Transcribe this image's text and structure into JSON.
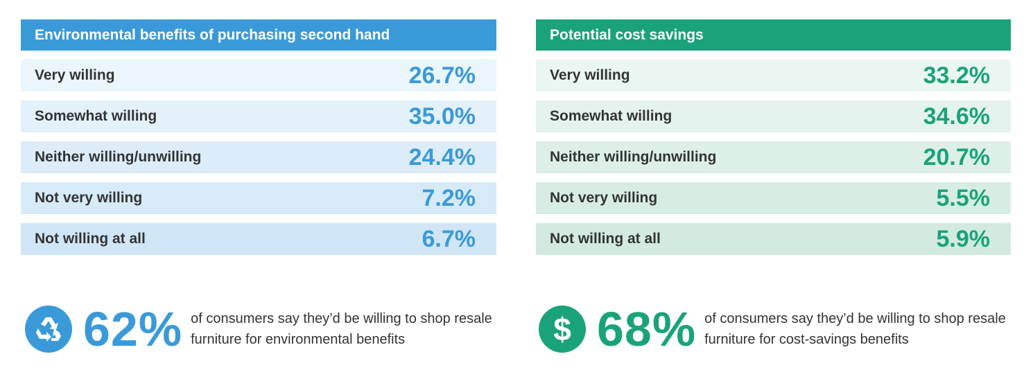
{
  "chart_data": [
    {
      "type": "table",
      "title": "Environmental benefits of purchasing second hand",
      "color": "#3a9ad9",
      "row_colors": [
        "#eaf5fc",
        "#e3f1fb",
        "#dcedf9",
        "#d6eaf8",
        "#d0e6f6"
      ],
      "categories": [
        "Very willing",
        "Somewhat willing",
        "Neither willing/unwilling",
        "Not very willing",
        "Not willing at all"
      ],
      "values": [
        26.7,
        35.0,
        24.4,
        7.2,
        6.7
      ],
      "value_labels": [
        "26.7%",
        "35.0%",
        "24.4%",
        "7.2%",
        "6.7%"
      ]
    },
    {
      "type": "table",
      "title": "Potential cost savings",
      "color": "#1aa37a",
      "row_colors": [
        "#eaf6f1",
        "#e4f3ed",
        "#ddf0e8",
        "#d7ede4",
        "#d2eae0"
      ],
      "categories": [
        "Very willing",
        "Somewhat willing",
        "Neither willing/unwilling",
        "Not very willing",
        "Not willing at all"
      ],
      "values": [
        33.2,
        34.6,
        20.7,
        5.5,
        5.9
      ],
      "value_labels": [
        "33.2%",
        "34.6%",
        "20.7%",
        "5.5%",
        "5.9%"
      ]
    }
  ],
  "summaries": [
    {
      "icon": "recycle-icon",
      "percent": "62%",
      "text": "of consumers say they’d be willing to shop resale furniture for environmental benefits"
    },
    {
      "icon": "dollar-icon",
      "icon_glyph": "$",
      "percent": "68%",
      "text": "of consumers say they’d be willing to shop resale furniture for cost-savings benefits"
    }
  ]
}
